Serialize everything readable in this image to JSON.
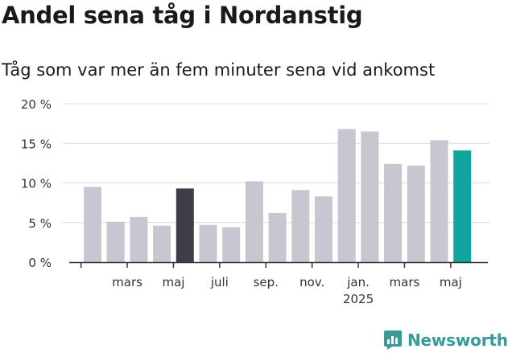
{
  "header": {
    "title": "Andel sena tåg i Nordanstig",
    "subtitle": "Tåg som var mer än fem minuter sena vid ankomst"
  },
  "brand": {
    "name": "Newsworthy",
    "color": "#3a9a97"
  },
  "colors": {
    "bar": "#c8c6d0",
    "highlight_dark": "#403d48",
    "highlight_teal": "#10a59e"
  },
  "chart_data": {
    "type": "bar",
    "title": "Andel sena tåg i Nordanstig",
    "subtitle": "Tåg som var mer än fem minuter sena vid ankomst",
    "ylim": [
      0,
      20
    ],
    "yticks": [
      0,
      5,
      10,
      15,
      20
    ],
    "ytick_labels": [
      "0 %",
      "5 %",
      "10 %",
      "15 %",
      "20 %"
    ],
    "grid": true,
    "values": [
      9.5,
      5.1,
      5.7,
      4.6,
      9.3,
      4.7,
      4.4,
      10.2,
      6.2,
      9.1,
      8.3,
      16.8,
      16.5,
      12.4,
      12.2,
      15.4,
      14.1
    ],
    "highlight": {
      "4": "dark",
      "16": "teal"
    },
    "xtick_labels": [
      {
        "at": 1.5,
        "label": "mars",
        "sub": ""
      },
      {
        "at": 3.5,
        "label": "maj",
        "sub": ""
      },
      {
        "at": 5.5,
        "label": "juli",
        "sub": ""
      },
      {
        "at": 7.5,
        "label": "sep.",
        "sub": ""
      },
      {
        "at": 9.5,
        "label": "nov.",
        "sub": ""
      },
      {
        "at": 11.5,
        "label": "jan.",
        "sub": "2025"
      },
      {
        "at": 13.5,
        "label": "mars",
        "sub": ""
      },
      {
        "at": 15.5,
        "label": "maj",
        "sub": ""
      }
    ]
  }
}
